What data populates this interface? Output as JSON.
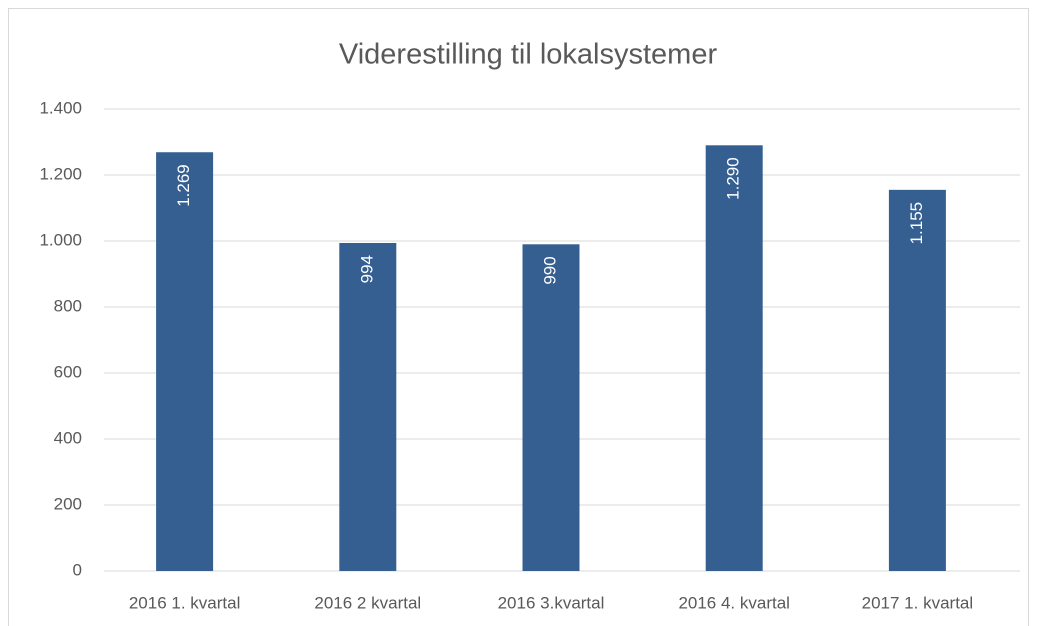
{
  "chart_data": {
    "type": "bar",
    "title": "Viderestilling til lokalsystemer",
    "categories": [
      "2016 1. kvartal",
      "2016 2 kvartal",
      "2016 3.kvartal",
      "2016 4. kvartal",
      "2017 1. kvartal"
    ],
    "values": [
      1269,
      994,
      990,
      1290,
      1155
    ],
    "value_labels": [
      "1.269",
      "994",
      "990",
      "1.290",
      "1.155"
    ],
    "color": "#365f91",
    "ylim": [
      0,
      1400
    ],
    "yticks": [
      0,
      200,
      400,
      600,
      800,
      {
        "value": 1000,
        "label": "1.000"
      },
      {
        "value": 1200,
        "label": "1.200"
      },
      {
        "value": 1400,
        "label": "1.400"
      }
    ],
    "grid": true
  }
}
